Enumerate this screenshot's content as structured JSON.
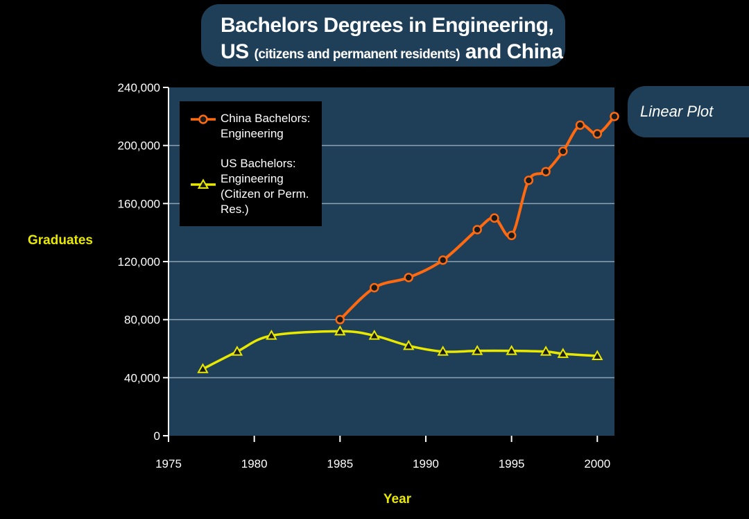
{
  "title": {
    "line1": "Bachelors Degrees in Engineering,",
    "line2_prefix": "US ",
    "line2_small": "(citizens and permanent residents)",
    "line2_suffix": " and China"
  },
  "mode_label": "Linear Plot",
  "colors": {
    "china": "#ff6a10",
    "us": "#e8e800",
    "plot_bg": "#1f3f59",
    "grid": "#8fa3b3"
  },
  "chart_data": {
    "type": "line",
    "xlabel": "Year",
    "ylabel": "Graduates",
    "xlim": [
      1975,
      2001
    ],
    "ylim": [
      0,
      240000
    ],
    "xticks": [
      1975,
      1980,
      1985,
      1990,
      1995,
      2000
    ],
    "yticks": [
      0,
      40000,
      80000,
      120000,
      160000,
      200000,
      240000
    ],
    "ytick_labels": [
      "0",
      "40,000",
      "80,000",
      "120,000",
      "160,000",
      "200,000",
      "240,000"
    ],
    "grid": true,
    "legend_position": "top-left",
    "series": [
      {
        "name": "China Bachelors: Engineering",
        "legend_lines": [
          "China Bachelors:",
          "Engineering"
        ],
        "marker": "circle",
        "x": [
          1985,
          1987,
          1989,
          1991,
          1993,
          1994,
          1995,
          1996,
          1997,
          1998,
          1999,
          2000,
          2001
        ],
        "y": [
          80000,
          102000,
          109000,
          121000,
          142000,
          150000,
          138000,
          176000,
          182000,
          196000,
          214000,
          208000,
          220000
        ]
      },
      {
        "name": "US Bachelors: Engineering (Citizen or Perm. Res.)",
        "legend_lines": [
          "US Bachelors:",
          "Engineering",
          "(Citizen or Perm.",
          "Res.)"
        ],
        "marker": "triangle",
        "x": [
          1977,
          1979,
          1981,
          1985,
          1987,
          1989,
          1991,
          1993,
          1995,
          1997,
          1998,
          2000
        ],
        "y": [
          46000,
          58000,
          69000,
          72000,
          69000,
          62000,
          58000,
          58500,
          58500,
          58000,
          56500,
          55000
        ]
      }
    ]
  }
}
